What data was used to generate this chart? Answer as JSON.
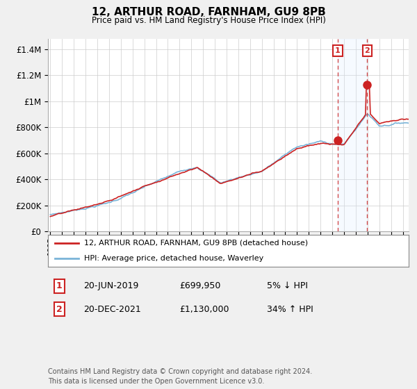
{
  "title": "12, ARTHUR ROAD, FARNHAM, GU9 8PB",
  "subtitle": "Price paid vs. HM Land Registry's House Price Index (HPI)",
  "ylabel_ticks": [
    "£0",
    "£200K",
    "£400K",
    "£600K",
    "£800K",
    "£1M",
    "£1.2M",
    "£1.4M"
  ],
  "ytick_values": [
    0,
    200000,
    400000,
    600000,
    800000,
    1000000,
    1200000,
    1400000
  ],
  "ylim": [
    0,
    1480000
  ],
  "xlim_start": 1994.8,
  "xlim_end": 2025.5,
  "hpi_color": "#7ab4d8",
  "price_color": "#cc2222",
  "shaded_color": "#ddeeff",
  "marker1_date": 2019.47,
  "marker1_price": 699950,
  "marker2_date": 2021.97,
  "marker2_price": 1130000,
  "marker1_label": "1",
  "marker2_label": "2",
  "legend_line1": "12, ARTHUR ROAD, FARNHAM, GU9 8PB (detached house)",
  "legend_line2": "HPI: Average price, detached house, Waverley",
  "table_row1_num": "1",
  "table_row1_date": "20-JUN-2019",
  "table_row1_price": "£699,950",
  "table_row1_hpi": "5% ↓ HPI",
  "table_row2_num": "2",
  "table_row2_date": "20-DEC-2021",
  "table_row2_price": "£1,130,000",
  "table_row2_hpi": "34% ↑ HPI",
  "footer": "Contains HM Land Registry data © Crown copyright and database right 2024.\nThis data is licensed under the Open Government Licence v3.0.",
  "bg_color": "#f0f0f0",
  "plot_bg_color": "#ffffff",
  "grid_color": "#cccccc"
}
